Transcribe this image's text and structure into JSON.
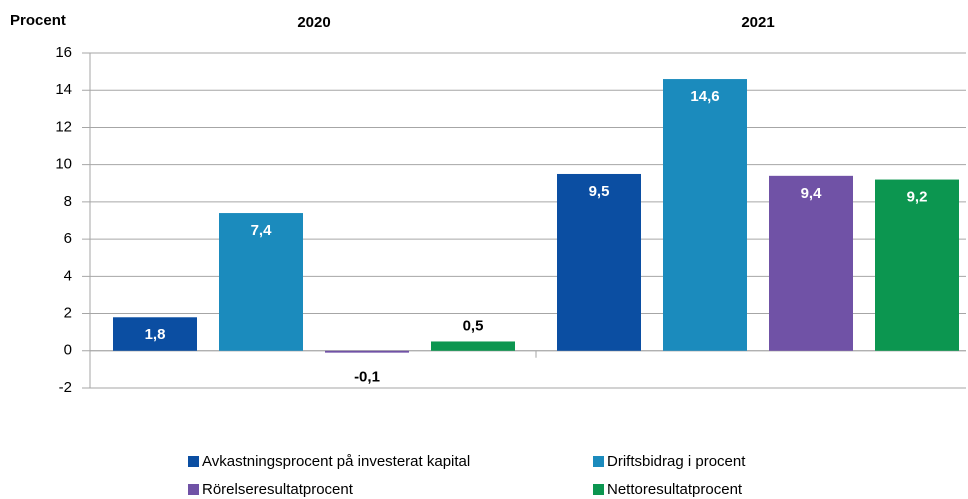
{
  "chart_data": {
    "type": "bar",
    "y_label": "Procent",
    "categories": [
      "2020",
      "2021"
    ],
    "series": [
      {
        "name": "Avkastningsprocent på investerat kapital",
        "color": "#0b4ea2",
        "values": [
          1.8,
          9.5
        ],
        "value_labels": [
          "1,8",
          "9,5"
        ]
      },
      {
        "name": "Driftsbidrag i procent",
        "color": "#1b8bbd",
        "values": [
          7.4,
          14.6
        ],
        "value_labels": [
          "7,4",
          "14,6"
        ]
      },
      {
        "name": "Rörelseresultatprocent",
        "color": "#7052a6",
        "values": [
          -0.1,
          9.4
        ],
        "value_labels": [
          "-0,1",
          "9,4"
        ]
      },
      {
        "name": "Nettoresultatprocent",
        "color": "#0c9650",
        "values": [
          0.5,
          9.2
        ],
        "value_labels": [
          "0,5",
          "9,2"
        ]
      }
    ],
    "ylim": [
      -2,
      16
    ],
    "yticks": [
      -2,
      0,
      2,
      4,
      6,
      8,
      10,
      12,
      14,
      16
    ],
    "grid": true
  }
}
